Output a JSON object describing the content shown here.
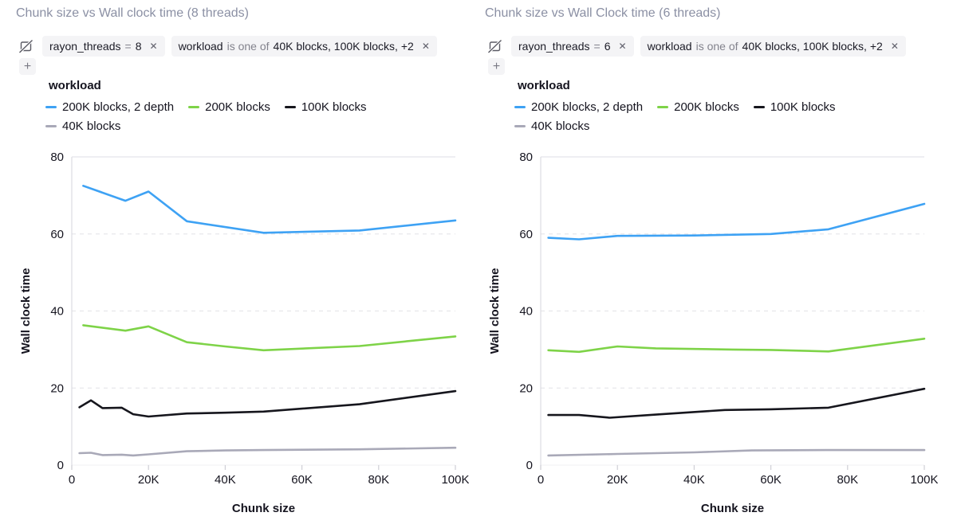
{
  "controls": {
    "close_glyph": "✕",
    "add_filter_glyph": "+"
  },
  "legend": {
    "title": "workload",
    "items": [
      {
        "label": "200K blocks, 2 depth",
        "color": "#3ea2f4"
      },
      {
        "label": "200K blocks",
        "color": "#7ed348"
      },
      {
        "label": "100K blocks",
        "color": "#16161d"
      },
      {
        "label": "40K blocks",
        "color": "#a9a9b8"
      }
    ]
  },
  "panels": [
    {
      "title": "Chunk size vs Wall clock time (8 threads)",
      "filters": [
        {
          "field": "rayon_threads",
          "op": "=",
          "value": "8"
        },
        {
          "field": "workload",
          "op": "is one of",
          "value": "40K blocks, 100K blocks, +2"
        }
      ]
    },
    {
      "title": "Chunk size vs Wall Clock time (6 threads)",
      "filters": [
        {
          "field": "rayon_threads",
          "op": "=",
          "value": "6"
        },
        {
          "field": "workload",
          "op": "is one of",
          "value": "40K blocks, 100K blocks, +2"
        }
      ]
    }
  ],
  "chart_data": [
    {
      "type": "line",
      "title": "Chunk size vs Wall clock time (8 threads)",
      "xlabel": "Chunk size",
      "ylabel": "Wall clock time",
      "xlim": [
        0,
        100000
      ],
      "ylim": [
        0,
        80
      ],
      "grid": "horizontal-dashed",
      "legend_position": "top",
      "xticks": [
        {
          "v": 0,
          "label": "0"
        },
        {
          "v": 20000,
          "label": "20K"
        },
        {
          "v": 40000,
          "label": "40K"
        },
        {
          "v": 60000,
          "label": "60K"
        },
        {
          "v": 80000,
          "label": "80K"
        },
        {
          "v": 100000,
          "label": "100K"
        }
      ],
      "yticks": [
        {
          "v": 0,
          "label": "0"
        },
        {
          "v": 20,
          "label": "20"
        },
        {
          "v": 40,
          "label": "40"
        },
        {
          "v": 60,
          "label": "60"
        },
        {
          "v": 80,
          "label": "80"
        }
      ],
      "series": [
        {
          "name": "200K blocks, 2 depth",
          "color": "#3ea2f4",
          "points": [
            [
              3000,
              72.5
            ],
            [
              14000,
              68.6
            ],
            [
              20000,
              71.0
            ],
            [
              30000,
              63.3
            ],
            [
              50000,
              60.3
            ],
            [
              75000,
              60.9
            ],
            [
              100000,
              63.5
            ]
          ]
        },
        {
          "name": "200K blocks",
          "color": "#7ed348",
          "points": [
            [
              3000,
              36.3
            ],
            [
              14000,
              34.9
            ],
            [
              20000,
              36.0
            ],
            [
              30000,
              31.9
            ],
            [
              40000,
              30.8
            ],
            [
              50000,
              29.8
            ],
            [
              75000,
              30.9
            ],
            [
              100000,
              33.4
            ]
          ]
        },
        {
          "name": "100K blocks",
          "color": "#16161d",
          "points": [
            [
              2000,
              15.0
            ],
            [
              5000,
              16.8
            ],
            [
              8000,
              14.8
            ],
            [
              13000,
              14.9
            ],
            [
              16000,
              13.2
            ],
            [
              20000,
              12.6
            ],
            [
              30000,
              13.4
            ],
            [
              40000,
              13.6
            ],
            [
              50000,
              13.9
            ],
            [
              75000,
              15.8
            ],
            [
              100000,
              19.2
            ]
          ]
        },
        {
          "name": "40K blocks",
          "color": "#a9a9b8",
          "points": [
            [
              2000,
              3.1
            ],
            [
              5000,
              3.2
            ],
            [
              8000,
              2.6
            ],
            [
              13000,
              2.7
            ],
            [
              16000,
              2.5
            ],
            [
              20000,
              2.8
            ],
            [
              30000,
              3.6
            ],
            [
              40000,
              3.8
            ],
            [
              50000,
              3.9
            ],
            [
              75000,
              4.1
            ],
            [
              100000,
              4.5
            ]
          ]
        }
      ]
    },
    {
      "type": "line",
      "title": "Chunk size vs Wall Clock time (6 threads)",
      "xlabel": "Chunk size",
      "ylabel": "Wall clock time",
      "xlim": [
        0,
        100000
      ],
      "ylim": [
        0,
        80
      ],
      "grid": "horizontal-dashed",
      "legend_position": "top",
      "xticks": [
        {
          "v": 0,
          "label": "0"
        },
        {
          "v": 20000,
          "label": "20K"
        },
        {
          "v": 40000,
          "label": "40K"
        },
        {
          "v": 60000,
          "label": "60K"
        },
        {
          "v": 80000,
          "label": "80K"
        },
        {
          "v": 100000,
          "label": "100K"
        }
      ],
      "yticks": [
        {
          "v": 0,
          "label": "0"
        },
        {
          "v": 20,
          "label": "20"
        },
        {
          "v": 40,
          "label": "40"
        },
        {
          "v": 60,
          "label": "60"
        },
        {
          "v": 80,
          "label": "80"
        }
      ],
      "series": [
        {
          "name": "200K blocks, 2 depth",
          "color": "#3ea2f4",
          "points": [
            [
              2000,
              59.0
            ],
            [
              10000,
              58.6
            ],
            [
              20000,
              59.5
            ],
            [
              40000,
              59.6
            ],
            [
              60000,
              60.0
            ],
            [
              75000,
              61.2
            ],
            [
              100000,
              67.8
            ]
          ]
        },
        {
          "name": "200K blocks",
          "color": "#7ed348",
          "points": [
            [
              2000,
              29.8
            ],
            [
              10000,
              29.4
            ],
            [
              20000,
              30.8
            ],
            [
              30000,
              30.3
            ],
            [
              50000,
              30.0
            ],
            [
              60000,
              29.9
            ],
            [
              75000,
              29.5
            ],
            [
              100000,
              32.8
            ]
          ]
        },
        {
          "name": "100K blocks",
          "color": "#16161d",
          "points": [
            [
              2000,
              13.0
            ],
            [
              10000,
              13.0
            ],
            [
              18000,
              12.3
            ],
            [
              30000,
              13.1
            ],
            [
              48000,
              14.3
            ],
            [
              60000,
              14.5
            ],
            [
              75000,
              14.9
            ],
            [
              100000,
              19.8
            ]
          ]
        },
        {
          "name": "40K blocks",
          "color": "#a9a9b8",
          "points": [
            [
              2000,
              2.5
            ],
            [
              20000,
              2.9
            ],
            [
              40000,
              3.3
            ],
            [
              55000,
              3.8
            ],
            [
              75000,
              3.9
            ],
            [
              100000,
              3.9
            ]
          ]
        }
      ]
    }
  ]
}
